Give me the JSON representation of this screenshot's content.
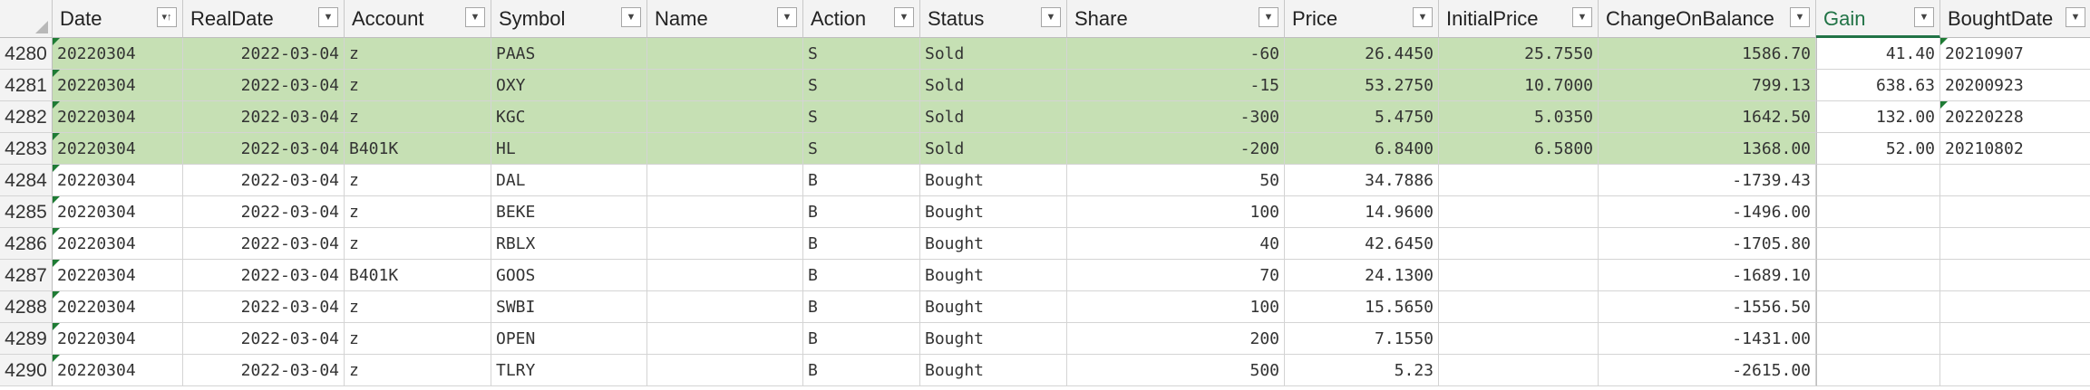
{
  "headers": [
    {
      "label": "Date",
      "sorted": true
    },
    {
      "label": "RealDate",
      "sorted": false
    },
    {
      "label": "Account",
      "sorted": false
    },
    {
      "label": "Symbol",
      "sorted": false
    },
    {
      "label": "Name",
      "sorted": false
    },
    {
      "label": "Action",
      "sorted": false
    },
    {
      "label": "Status",
      "sorted": false
    },
    {
      "label": "Share",
      "sorted": false
    },
    {
      "label": "Price",
      "sorted": false
    },
    {
      "label": "InitialPrice",
      "sorted": false
    },
    {
      "label": "ChangeOnBalance",
      "sorted": false
    },
    {
      "label": "Gain",
      "sorted": false,
      "active": true
    },
    {
      "label": "BoughtDate",
      "sorted": false
    }
  ],
  "icons": {
    "filter": "filter-dropdown-icon",
    "sort": "sort-ascending-icon"
  },
  "colors": {
    "sold_fill": "#c6e0b4",
    "active_header": "#217346",
    "error_triangle": "#1e7b34"
  },
  "rows": [
    {
      "row": "4280",
      "Date": "20220304",
      "RealDate": "2022-03-04",
      "Account": "z",
      "Symbol": "PAAS",
      "Name": "",
      "Action": "S",
      "Status": "Sold",
      "Share": "-60",
      "Price": "26.4450",
      "InitialPrice": "25.7550",
      "ChangeOnBalance": "1586.70",
      "Gain": "41.40",
      "BoughtDate": "20210907",
      "sold": true,
      "boughtTri": true
    },
    {
      "row": "4281",
      "Date": "20220304",
      "RealDate": "2022-03-04",
      "Account": "z",
      "Symbol": "OXY",
      "Name": "",
      "Action": "S",
      "Status": "Sold",
      "Share": "-15",
      "Price": "53.2750",
      "InitialPrice": "10.7000",
      "ChangeOnBalance": "799.13",
      "Gain": "638.63",
      "BoughtDate": "20200923",
      "sold": true,
      "boughtTri": false
    },
    {
      "row": "4282",
      "Date": "20220304",
      "RealDate": "2022-03-04",
      "Account": "z",
      "Symbol": "KGC",
      "Name": "",
      "Action": "S",
      "Status": "Sold",
      "Share": "-300",
      "Price": "5.4750",
      "InitialPrice": "5.0350",
      "ChangeOnBalance": "1642.50",
      "Gain": "132.00",
      "BoughtDate": "20220228",
      "sold": true,
      "boughtTri": true
    },
    {
      "row": "4283",
      "Date": "20220304",
      "RealDate": "2022-03-04",
      "Account": "B401K",
      "Symbol": "HL",
      "Name": "",
      "Action": "S",
      "Status": "Sold",
      "Share": "-200",
      "Price": "6.8400",
      "InitialPrice": "6.5800",
      "ChangeOnBalance": "1368.00",
      "Gain": "52.00",
      "BoughtDate": "20210802",
      "sold": true,
      "boughtTri": false
    },
    {
      "row": "4284",
      "Date": "20220304",
      "RealDate": "2022-03-04",
      "Account": "z",
      "Symbol": "DAL",
      "Name": "",
      "Action": "B",
      "Status": "Bought",
      "Share": "50",
      "Price": "34.7886",
      "InitialPrice": "",
      "ChangeOnBalance": "-1739.43",
      "Gain": "",
      "BoughtDate": "",
      "sold": false,
      "boughtTri": false
    },
    {
      "row": "4285",
      "Date": "20220304",
      "RealDate": "2022-03-04",
      "Account": "z",
      "Symbol": "BEKE",
      "Name": "",
      "Action": "B",
      "Status": "Bought",
      "Share": "100",
      "Price": "14.9600",
      "InitialPrice": "",
      "ChangeOnBalance": "-1496.00",
      "Gain": "",
      "BoughtDate": "",
      "sold": false,
      "boughtTri": false
    },
    {
      "row": "4286",
      "Date": "20220304",
      "RealDate": "2022-03-04",
      "Account": "z",
      "Symbol": "RBLX",
      "Name": "",
      "Action": "B",
      "Status": "Bought",
      "Share": "40",
      "Price": "42.6450",
      "InitialPrice": "",
      "ChangeOnBalance": "-1705.80",
      "Gain": "",
      "BoughtDate": "",
      "sold": false,
      "boughtTri": false
    },
    {
      "row": "4287",
      "Date": "20220304",
      "RealDate": "2022-03-04",
      "Account": "B401K",
      "Symbol": "GOOS",
      "Name": "",
      "Action": "B",
      "Status": "Bought",
      "Share": "70",
      "Price": "24.1300",
      "InitialPrice": "",
      "ChangeOnBalance": "-1689.10",
      "Gain": "",
      "BoughtDate": "",
      "sold": false,
      "boughtTri": false
    },
    {
      "row": "4288",
      "Date": "20220304",
      "RealDate": "2022-03-04",
      "Account": "z",
      "Symbol": "SWBI",
      "Name": "",
      "Action": "B",
      "Status": "Bought",
      "Share": "100",
      "Price": "15.5650",
      "InitialPrice": "",
      "ChangeOnBalance": "-1556.50",
      "Gain": "",
      "BoughtDate": "",
      "sold": false,
      "boughtTri": false
    },
    {
      "row": "4289",
      "Date": "20220304",
      "RealDate": "2022-03-04",
      "Account": "z",
      "Symbol": "OPEN",
      "Name": "",
      "Action": "B",
      "Status": "Bought",
      "Share": "200",
      "Price": "7.1550",
      "InitialPrice": "",
      "ChangeOnBalance": "-1431.00",
      "Gain": "",
      "BoughtDate": "",
      "sold": false,
      "boughtTri": false
    },
    {
      "row": "4290",
      "Date": "20220304",
      "RealDate": "2022-03-04",
      "Account": "z",
      "Symbol": "TLRY",
      "Name": "",
      "Action": "B",
      "Status": "Bought",
      "Share": "500",
      "Price": "5.23",
      "InitialPrice": "",
      "ChangeOnBalance": "-2615.00",
      "Gain": "",
      "BoughtDate": "",
      "sold": false,
      "boughtTri": false
    }
  ]
}
